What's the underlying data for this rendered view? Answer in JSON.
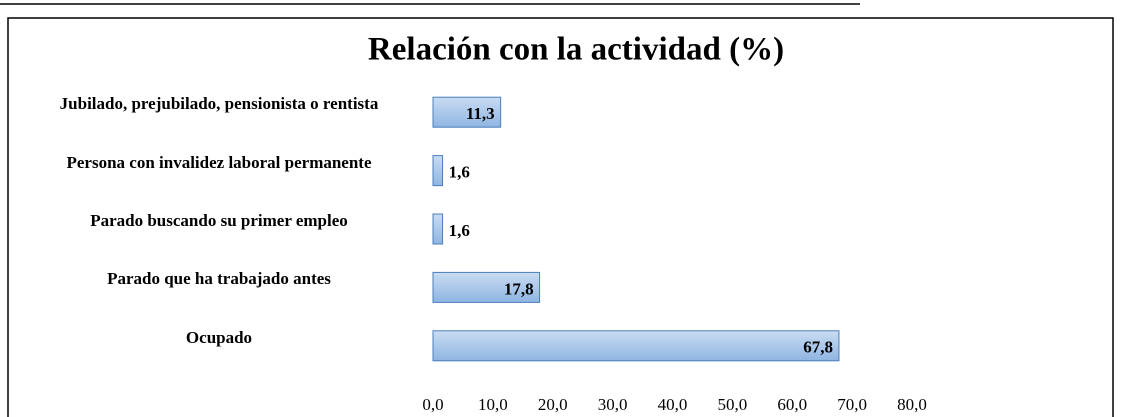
{
  "chart_data": {
    "type": "bar",
    "orientation": "horizontal",
    "title": "Relación con la actividad (%)",
    "categories": [
      "Jubilado, prejubilado, pensionista o rentista",
      "Persona con invalidez laboral permanente",
      "Parado buscando su primer empleo",
      "Parado que ha trabajado antes",
      "Ocupado"
    ],
    "values": [
      11.3,
      1.6,
      1.6,
      17.8,
      67.8
    ],
    "value_labels": [
      "11,3",
      "1,6",
      "1,6",
      "17,8",
      "67,8"
    ],
    "color": "#a6c6ea",
    "xlim": [
      0,
      80
    ],
    "xticks": [
      {
        "value": 0,
        "label": "0,0"
      },
      {
        "value": 10,
        "label": "10,0"
      },
      {
        "value": 20,
        "label": "20,0"
      },
      {
        "value": 30,
        "label": "30,0"
      },
      {
        "value": 40,
        "label": "40,0"
      },
      {
        "value": 50,
        "label": "50,0"
      },
      {
        "value": 60,
        "label": "60,0"
      },
      {
        "value": 70,
        "label": "70,0"
      },
      {
        "value": 80,
        "label": "80,0"
      }
    ],
    "grid": false
  }
}
